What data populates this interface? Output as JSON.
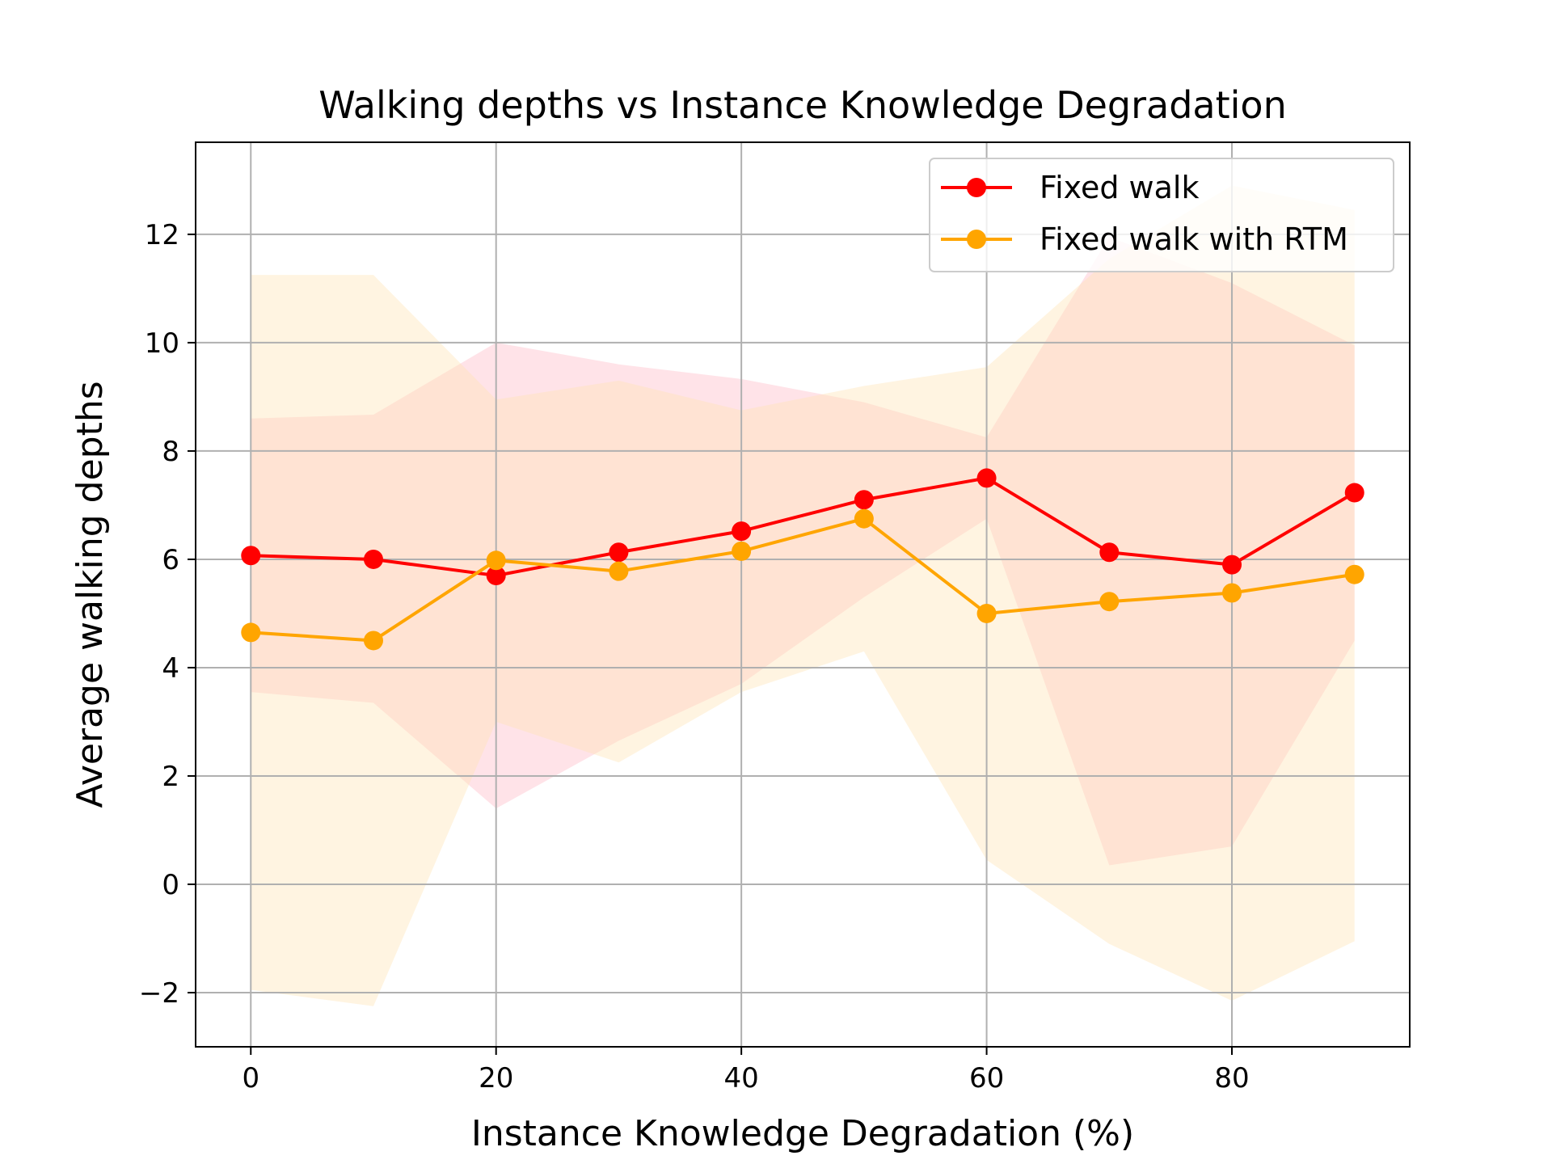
{
  "chart_data": {
    "type": "line",
    "title": "Walking depths vs Instance Knowledge Degradation",
    "xlabel": "Instance Knowledge Degradation (%)",
    "ylabel": "Average walking depths",
    "xlim": [
      -4.5,
      94.5
    ],
    "ylim": [
      -3,
      13.7
    ],
    "xticks": [
      0,
      20,
      40,
      60,
      80
    ],
    "yticks": [
      -2,
      0,
      2,
      4,
      6,
      8,
      10,
      12
    ],
    "xtick_labels": [
      "0",
      "20",
      "40",
      "60",
      "80"
    ],
    "ytick_labels": [
      "−2",
      "0",
      "2",
      "4",
      "6",
      "8",
      "10",
      "12"
    ],
    "grid": true,
    "legend_position": "top-right",
    "x": [
      0,
      10,
      20,
      30,
      40,
      50,
      60,
      70,
      80,
      90
    ],
    "series": [
      {
        "name": "Fixed walk",
        "color": "#ff0000",
        "band_color": "#ffc0cb",
        "values": [
          6.07,
          6.0,
          5.7,
          6.13,
          6.52,
          7.1,
          7.5,
          6.13,
          5.9,
          7.23
        ],
        "band_upper": [
          8.6,
          8.67,
          10.0,
          9.6,
          9.33,
          8.9,
          8.25,
          11.95,
          11.1,
          9.95
        ],
        "band_lower": [
          3.55,
          3.35,
          1.4,
          2.65,
          3.7,
          5.3,
          6.75,
          0.35,
          0.7,
          4.5
        ]
      },
      {
        "name": "Fixed walk with RTM",
        "color": "#ffa500",
        "band_color": "#ffe4b5",
        "values": [
          4.65,
          4.5,
          5.98,
          5.78,
          6.15,
          6.75,
          5.0,
          5.22,
          5.38,
          5.72
        ],
        "band_upper": [
          11.25,
          11.25,
          8.95,
          9.3,
          8.75,
          9.2,
          9.55,
          11.55,
          12.9,
          12.45
        ],
        "band_lower": [
          -1.95,
          -2.25,
          3.0,
          2.25,
          3.55,
          4.3,
          0.45,
          -1.1,
          -2.15,
          -1.05
        ]
      }
    ]
  }
}
